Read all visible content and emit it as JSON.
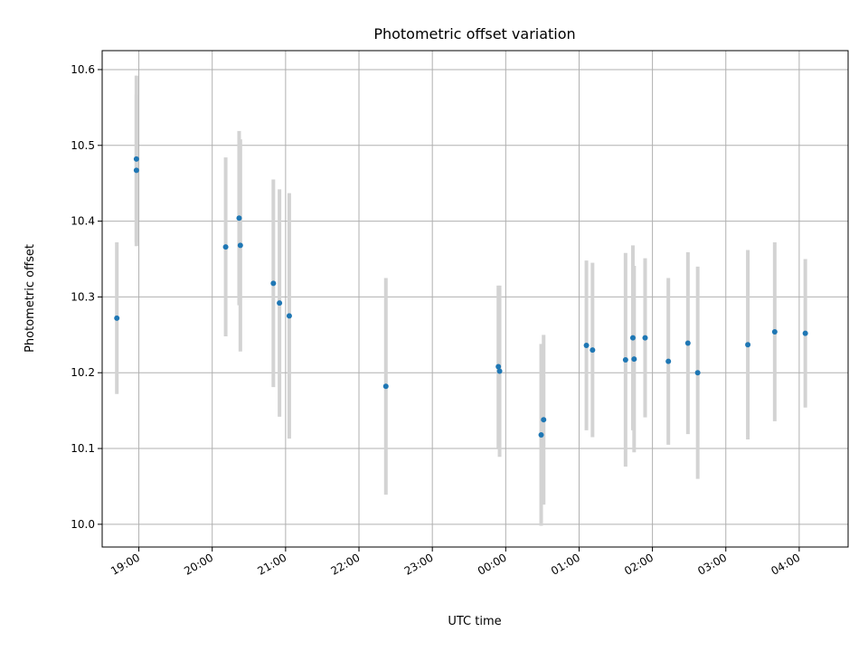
{
  "chart_data": {
    "type": "scatter",
    "title": "Photometric offset variation",
    "xlabel": "UTC time",
    "ylabel": "Photometric offset",
    "xlim": [
      "18:30",
      "04:40"
    ],
    "ylim": [
      9.97,
      10.625
    ],
    "grid": true,
    "x_ticks": [
      "19:00",
      "20:00",
      "21:00",
      "22:00",
      "23:00",
      "00:00",
      "01:00",
      "02:00",
      "03:00",
      "04:00"
    ],
    "y_ticks": [
      "10.0",
      "10.1",
      "10.2",
      "10.3",
      "10.4",
      "10.5",
      "10.6"
    ],
    "colors": {
      "point": "#1f77b4",
      "errorbar": "#d3d3d3"
    },
    "series": [
      {
        "points": [
          {
            "t": "18:42",
            "y": 10.272,
            "err": 0.1
          },
          {
            "t": "18:58",
            "y": 10.482,
            "err": 0.11
          },
          {
            "t": "18:58",
            "y": 10.467,
            "err": 0.1
          },
          {
            "t": "20:11",
            "y": 10.366,
            "err": 0.118
          },
          {
            "t": "20:22",
            "y": 10.404,
            "err": 0.115
          },
          {
            "t": "20:23",
            "y": 10.368,
            "err": 0.14
          },
          {
            "t": "20:50",
            "y": 10.318,
            "err": 0.137
          },
          {
            "t": "20:55",
            "y": 10.292,
            "err": 0.15
          },
          {
            "t": "21:03",
            "y": 10.275,
            "err": 0.162
          },
          {
            "t": "22:22",
            "y": 10.182,
            "err": 0.143
          },
          {
            "t": "23:54",
            "y": 10.208,
            "err": 0.107
          },
          {
            "t": "23:55",
            "y": 10.202,
            "err": 0.113
          },
          {
            "t": "00:29",
            "y": 10.118,
            "err": 0.12
          },
          {
            "t": "00:31",
            "y": 10.138,
            "err": 0.112
          },
          {
            "t": "01:06",
            "y": 10.236,
            "err": 0.112
          },
          {
            "t": "01:11",
            "y": 10.23,
            "err": 0.115
          },
          {
            "t": "01:38",
            "y": 10.217,
            "err": 0.141
          },
          {
            "t": "01:44",
            "y": 10.246,
            "err": 0.122
          },
          {
            "t": "01:45",
            "y": 10.218,
            "err": 0.123
          },
          {
            "t": "01:54",
            "y": 10.246,
            "err": 0.105
          },
          {
            "t": "02:13",
            "y": 10.215,
            "err": 0.11
          },
          {
            "t": "02:29",
            "y": 10.239,
            "err": 0.12
          },
          {
            "t": "02:37",
            "y": 10.2,
            "err": 0.14
          },
          {
            "t": "03:18",
            "y": 10.237,
            "err": 0.125
          },
          {
            "t": "03:40",
            "y": 10.254,
            "err": 0.118
          },
          {
            "t": "04:05",
            "y": 10.252,
            "err": 0.098
          }
        ]
      }
    ]
  }
}
